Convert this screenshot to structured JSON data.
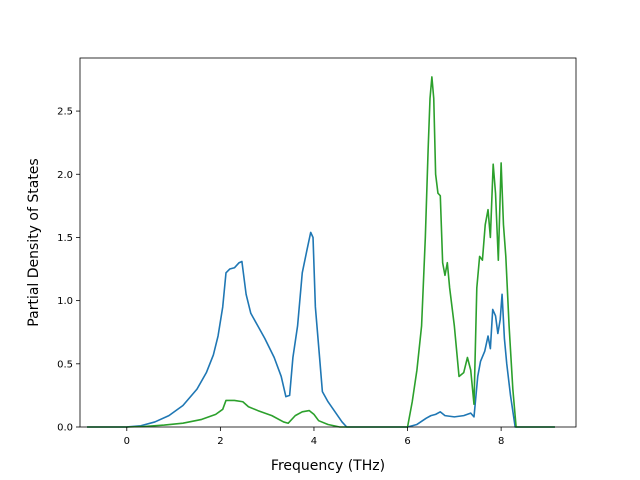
{
  "chart_data": {
    "type": "line",
    "title": "",
    "xlabel": "Frequency (THz)",
    "ylabel": "Partial Density of States",
    "xlim": [
      -1.0,
      9.6
    ],
    "ylim": [
      0.0,
      2.92
    ],
    "xticks": [
      0,
      2,
      4,
      6,
      8
    ],
    "xtick_labels": [
      "0",
      "2",
      "4",
      "6",
      "8"
    ],
    "yticks": [
      0.0,
      0.5,
      1.0,
      1.5,
      2.0,
      2.5
    ],
    "ytick_labels": [
      "0.0",
      "0.5",
      "1.0",
      "1.5",
      "2.0",
      "2.5"
    ],
    "grid": false,
    "legend": "none",
    "series": [
      {
        "color": "#1f77b4",
        "points": [
          [
            -0.85,
            0.0
          ],
          [
            0.0,
            0.0
          ],
          [
            0.3,
            0.01
          ],
          [
            0.6,
            0.04
          ],
          [
            0.9,
            0.09
          ],
          [
            1.2,
            0.17
          ],
          [
            1.5,
            0.3
          ],
          [
            1.7,
            0.43
          ],
          [
            1.85,
            0.57
          ],
          [
            1.95,
            0.72
          ],
          [
            2.05,
            0.95
          ],
          [
            2.12,
            1.22
          ],
          [
            2.2,
            1.25
          ],
          [
            2.3,
            1.26
          ],
          [
            2.4,
            1.3
          ],
          [
            2.46,
            1.31
          ],
          [
            2.55,
            1.05
          ],
          [
            2.65,
            0.9
          ],
          [
            2.8,
            0.8
          ],
          [
            2.95,
            0.7
          ],
          [
            3.15,
            0.55
          ],
          [
            3.3,
            0.4
          ],
          [
            3.4,
            0.24
          ],
          [
            3.48,
            0.25
          ],
          [
            3.55,
            0.55
          ],
          [
            3.65,
            0.8
          ],
          [
            3.75,
            1.22
          ],
          [
            3.85,
            1.4
          ],
          [
            3.93,
            1.54
          ],
          [
            3.98,
            1.5
          ],
          [
            4.03,
            0.95
          ],
          [
            4.12,
            0.55
          ],
          [
            4.18,
            0.28
          ],
          [
            4.3,
            0.2
          ],
          [
            4.45,
            0.12
          ],
          [
            4.6,
            0.04
          ],
          [
            4.7,
            0.0
          ],
          [
            6.0,
            0.0
          ],
          [
            6.2,
            0.02
          ],
          [
            6.4,
            0.07
          ],
          [
            6.5,
            0.09
          ],
          [
            6.6,
            0.1
          ],
          [
            6.7,
            0.12
          ],
          [
            6.8,
            0.09
          ],
          [
            7.0,
            0.08
          ],
          [
            7.2,
            0.09
          ],
          [
            7.35,
            0.11
          ],
          [
            7.42,
            0.08
          ],
          [
            7.5,
            0.4
          ],
          [
            7.56,
            0.52
          ],
          [
            7.65,
            0.6
          ],
          [
            7.72,
            0.72
          ],
          [
            7.77,
            0.62
          ],
          [
            7.82,
            0.93
          ],
          [
            7.88,
            0.88
          ],
          [
            7.93,
            0.74
          ],
          [
            7.98,
            0.85
          ],
          [
            8.02,
            1.05
          ],
          [
            8.07,
            0.7
          ],
          [
            8.12,
            0.5
          ],
          [
            8.2,
            0.25
          ],
          [
            8.3,
            0.0
          ],
          [
            9.15,
            0.0
          ]
        ]
      },
      {
        "color": "#2ca02c",
        "points": [
          [
            -0.85,
            0.0
          ],
          [
            0.0,
            0.0
          ],
          [
            0.4,
            0.005
          ],
          [
            0.8,
            0.015
          ],
          [
            1.2,
            0.03
          ],
          [
            1.6,
            0.06
          ],
          [
            1.9,
            0.1
          ],
          [
            2.05,
            0.14
          ],
          [
            2.12,
            0.21
          ],
          [
            2.3,
            0.21
          ],
          [
            2.48,
            0.2
          ],
          [
            2.6,
            0.16
          ],
          [
            2.8,
            0.13
          ],
          [
            3.1,
            0.09
          ],
          [
            3.35,
            0.04
          ],
          [
            3.45,
            0.03
          ],
          [
            3.6,
            0.09
          ],
          [
            3.75,
            0.12
          ],
          [
            3.9,
            0.13
          ],
          [
            4.0,
            0.1
          ],
          [
            4.1,
            0.05
          ],
          [
            4.3,
            0.02
          ],
          [
            4.55,
            0.0
          ],
          [
            6.0,
            0.0
          ],
          [
            6.1,
            0.2
          ],
          [
            6.2,
            0.45
          ],
          [
            6.3,
            0.8
          ],
          [
            6.38,
            1.5
          ],
          [
            6.44,
            2.2
          ],
          [
            6.48,
            2.6
          ],
          [
            6.52,
            2.77
          ],
          [
            6.56,
            2.6
          ],
          [
            6.6,
            2.0
          ],
          [
            6.65,
            1.85
          ],
          [
            6.7,
            1.83
          ],
          [
            6.75,
            1.3
          ],
          [
            6.8,
            1.2
          ],
          [
            6.85,
            1.3
          ],
          [
            6.9,
            1.1
          ],
          [
            7.0,
            0.8
          ],
          [
            7.1,
            0.4
          ],
          [
            7.2,
            0.43
          ],
          [
            7.28,
            0.55
          ],
          [
            7.35,
            0.45
          ],
          [
            7.42,
            0.18
          ],
          [
            7.48,
            1.1
          ],
          [
            7.54,
            1.35
          ],
          [
            7.6,
            1.32
          ],
          [
            7.66,
            1.6
          ],
          [
            7.72,
            1.72
          ],
          [
            7.77,
            1.5
          ],
          [
            7.83,
            2.08
          ],
          [
            7.88,
            1.85
          ],
          [
            7.94,
            1.32
          ],
          [
            8.0,
            2.09
          ],
          [
            8.05,
            1.6
          ],
          [
            8.1,
            1.35
          ],
          [
            8.17,
            0.8
          ],
          [
            8.25,
            0.3
          ],
          [
            8.32,
            0.0
          ],
          [
            9.15,
            0.0
          ]
        ]
      }
    ]
  }
}
